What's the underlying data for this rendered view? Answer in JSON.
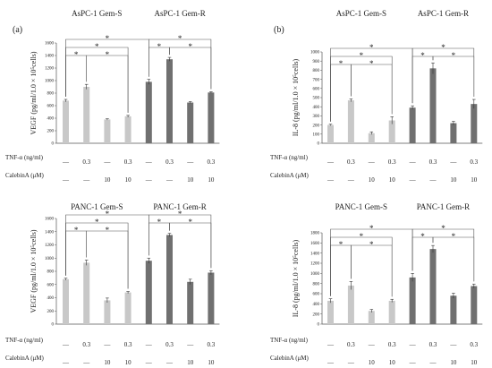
{
  "panel_labels": [
    "(a)",
    "(b)"
  ],
  "row_labels": [
    "TNF-α (ng/ml)",
    "CalebinA (μM)"
  ],
  "tnf_values": [
    "—",
    "0.3",
    "—",
    "0.3",
    "—",
    "0.3",
    "—",
    "0.3"
  ],
  "calebin_values": [
    "—",
    "—",
    "10",
    "10",
    "—",
    "—",
    "10",
    "10"
  ],
  "bar_colors": {
    "sensitive": "#c8c8c8",
    "resistant": "#707070"
  },
  "chart_data": [
    {
      "type": "bar",
      "panel": "(a)",
      "title_left": "AsPC-1 Gem-S",
      "title_right": "AsPC-1 Gem-R",
      "ylabel": "VEGF (pg/ml/1.0 × 10⁵cells)",
      "ylim": [
        0,
        1600
      ],
      "yticks": [
        0,
        200,
        400,
        600,
        800,
        1000,
        1200,
        1400,
        1600
      ],
      "values": [
        680,
        900,
        380,
        430,
        980,
        1340,
        650,
        810
      ],
      "errors": [
        20,
        40,
        10,
        15,
        40,
        30,
        15,
        12
      ]
    },
    {
      "type": "bar",
      "panel": "(b)",
      "title_left": "AsPC-1 Gem-S",
      "title_right": "AsPC-1 Gem-R",
      "ylabel": "IL-8 (pg/ml/1.0 × 10⁵cells)",
      "ylim": [
        0,
        1000
      ],
      "yticks": [
        0,
        100,
        200,
        300,
        400,
        500,
        600,
        700,
        800,
        900,
        1000
      ],
      "values": [
        200,
        470,
        110,
        250,
        390,
        820,
        220,
        430
      ],
      "errors": [
        8,
        15,
        15,
        40,
        20,
        60,
        20,
        50
      ]
    },
    {
      "type": "bar",
      "panel": "",
      "title_left": "PANC-1 Gem-S",
      "title_right": "PANC-1 Gem-R",
      "ylabel": "VEGF (pg/ml/1.0 × 10⁵cells)",
      "ylim": [
        0,
        1600
      ],
      "yticks": [
        0,
        200,
        400,
        600,
        800,
        1000,
        1200,
        1400,
        1600
      ],
      "values": [
        680,
        930,
        360,
        480,
        960,
        1350,
        640,
        780
      ],
      "errors": [
        15,
        40,
        35,
        15,
        40,
        25,
        40,
        30
      ]
    },
    {
      "type": "bar",
      "panel": "",
      "title_left": "PANC-1 Gem-S",
      "title_right": "PANC-1 Gem-R",
      "ylabel": "IL-8 (pg/ml/1.0 × 10⁵cells)",
      "ylim": [
        0,
        1800
      ],
      "yticks": [
        0,
        200,
        400,
        600,
        800,
        1000,
        1200,
        1400,
        1600,
        1800
      ],
      "values": [
        460,
        760,
        260,
        460,
        920,
        1480,
        560,
        750
      ],
      "errors": [
        40,
        80,
        30,
        30,
        80,
        70,
        50,
        40
      ]
    }
  ]
}
